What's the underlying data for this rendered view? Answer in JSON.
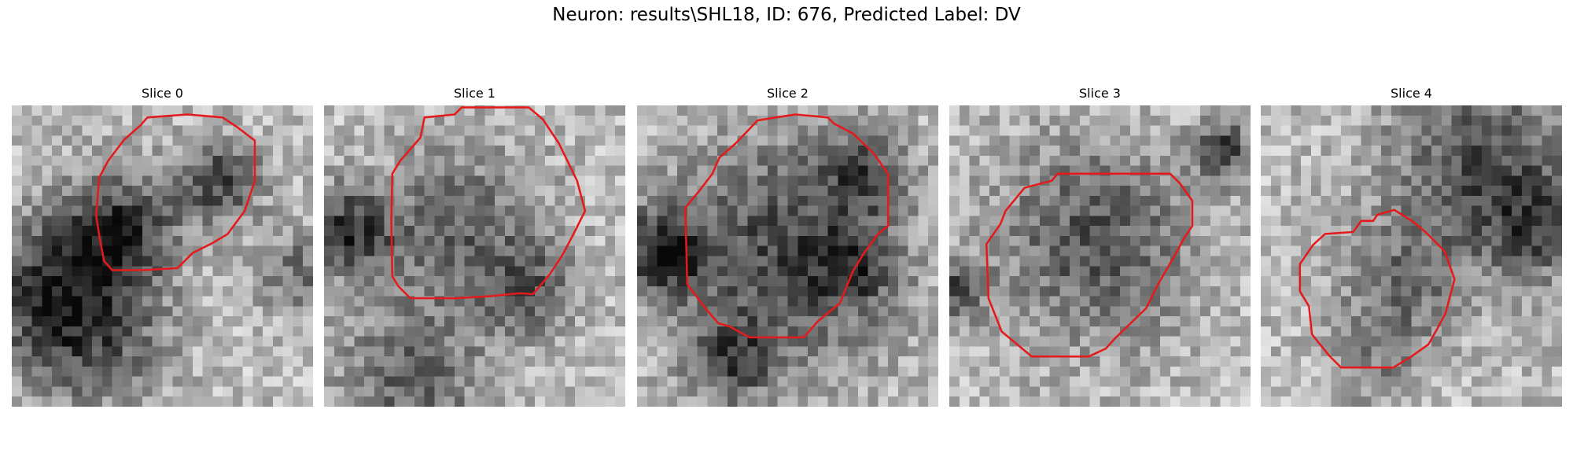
{
  "figure": {
    "title": "Neuron: results\\SHL18, ID: 676, Predicted Label: DV"
  },
  "panels": [
    {
      "title": "Slice 0",
      "contour_color": "#e41a1c"
    },
    {
      "title": "Slice 1",
      "contour_color": "#e41a1c"
    },
    {
      "title": "Slice 2",
      "contour_color": "#e41a1c"
    },
    {
      "title": "Slice 3",
      "contour_color": "#e41a1c"
    },
    {
      "title": "Slice 4",
      "contour_color": "#e41a1c"
    }
  ]
}
